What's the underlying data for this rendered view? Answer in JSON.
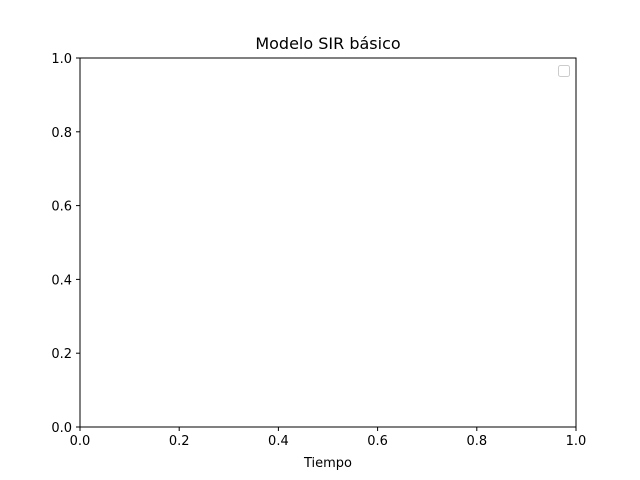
{
  "chart_data": {
    "type": "line",
    "title": "Modelo SIR básico",
    "xlabel": "Tiempo",
    "ylabel": "",
    "xlim": [
      0.0,
      1.0
    ],
    "ylim": [
      0.0,
      1.0
    ],
    "x_ticks": [
      "0.0",
      "0.2",
      "0.4",
      "0.6",
      "0.8",
      "1.0"
    ],
    "y_ticks": [
      "0.0",
      "0.2",
      "0.4",
      "0.6",
      "0.8",
      "1.0"
    ],
    "series": [],
    "legend": {
      "placement": "top-right",
      "entries": []
    },
    "grid": false
  }
}
